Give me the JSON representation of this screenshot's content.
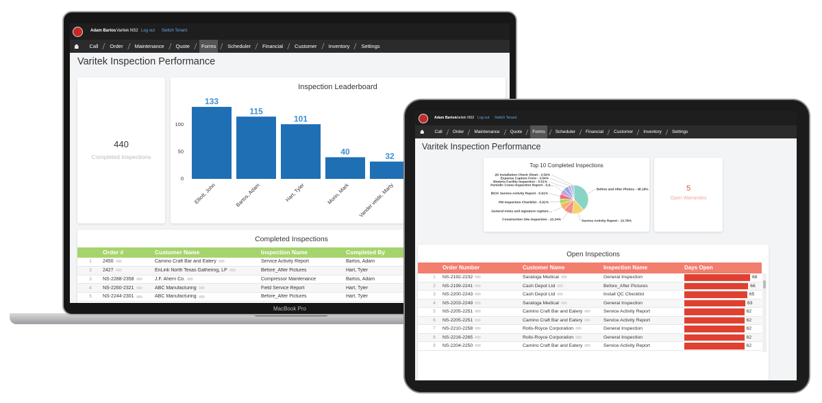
{
  "laptop": {
    "header": {
      "user": "Adam Bartos",
      "tenant": "Varitek NS2",
      "links": [
        "Log out",
        "Switch Tenant"
      ]
    },
    "nav": [
      "Call",
      "Order",
      "Maintenance",
      "Quote",
      "Forms",
      "Scheduler",
      "Financial",
      "Customer",
      "Inventory",
      "Settings"
    ],
    "active_nav": 4,
    "title": "Varitek Inspection Performance",
    "kpi": {
      "value": 440,
      "label": "Completed Inspections"
    },
    "chart": {
      "type": "bar",
      "title": "Inspection Leaderboard",
      "categories": [
        "Elliott, John",
        "Bartos, Adam",
        "Hart, Tyler",
        "Morin, Mark",
        "Vander velde, Marty"
      ],
      "values": [
        133,
        115,
        101,
        40,
        32
      ],
      "color": "#1f6fb5",
      "label_color": "#3d8fd1",
      "ylim": [
        0,
        150
      ],
      "yticks": [
        0,
        50,
        100
      ]
    },
    "table": {
      "title": "Completed Inspections",
      "columns": [
        "Order #",
        "Customer Name",
        "Inspection Name",
        "Completed By"
      ],
      "header_color": "#a6d46c",
      "rows": [
        [
          1,
          "2450",
          "Camino Craft Bar and Eatery",
          "Service Activity Report",
          "Bartos, Adam"
        ],
        [
          2,
          "2427",
          "EnLink North Texas Gathering, LP",
          "Before_After Pictures",
          "Hart, Tyler"
        ],
        [
          3,
          "NS-2288-2358",
          "J.F. Ahern Co.",
          "Compressor Maintenance",
          "Bartos, Adam"
        ],
        [
          4,
          "NS-2260-2321",
          "ABC Manufacturing",
          "Field Service Report",
          "Hart, Tyler"
        ],
        [
          5,
          "NS-2244-2301",
          "ABC Manufacturing",
          "Before_After Pictures",
          "Hart, Tyler"
        ]
      ]
    },
    "brand": "MacBook Pro"
  },
  "tablet": {
    "header": {
      "user": "Adam Bartos",
      "tenant": "Varitek NS2",
      "links": [
        "Log out",
        "Switch Tenant"
      ]
    },
    "nav": [
      "Call",
      "Order",
      "Maintenance",
      "Quote",
      "Forms",
      "Scheduler",
      "Financial",
      "Customer",
      "Inventory",
      "Settings"
    ],
    "active_nav": 4,
    "title": "Varitek Inspection Performance",
    "chart": {
      "type": "pie",
      "title": "Top 10 Completed Inspections",
      "categories": [
        "Before and After Photos - 38.19%",
        "Service Activity Report - 13.78%",
        "Construction Site Inspection - 10.24%",
        "General notes and signature capture ...",
        "PM Inspection Checklist - 5.91%",
        "BICK Service Activity Report - 5.91%",
        "Periodic Crane Inspection Report - 5.9...",
        "Bioteria Facility Inspection - 5.51%",
        "Expense Capture Form - 3.54%",
        "2D Installation Check Sheet - 3.54%"
      ],
      "values": [
        38.19,
        13.78,
        10.24,
        7.48,
        5.91,
        5.91,
        5.91,
        5.51,
        3.54,
        3.54
      ],
      "colors": [
        "#8ad4c6",
        "#f3d36b",
        "#f28e8e",
        "#f6b26b",
        "#b5d66b",
        "#ee6e73",
        "#c79ee0",
        "#7fb0e8",
        "#f59fc0",
        "#9ad0f5"
      ]
    },
    "kpi": {
      "value": 5,
      "label": "Open Warranties"
    },
    "table": {
      "title": "Open Inspections",
      "columns": [
        "Order Number",
        "Customer Name",
        "Inspection Name",
        "Days Open"
      ],
      "header_color": "#f27e6e",
      "bar_color": "#e0402f",
      "rows": [
        [
          1,
          "NS-2192-2232",
          "Saratoga Medical",
          "General Inspection",
          68
        ],
        [
          2,
          "NS-2199-2241",
          "Cash Depot Ltd",
          "Before_After Pictures",
          66
        ],
        [
          3,
          "NS-2200-2243",
          "Cash Depot Ltd",
          "Install QC Checklist",
          65
        ],
        [
          4,
          "NS-2203-2249",
          "Saratoga Medical",
          "General Inspection",
          63
        ],
        [
          5,
          "NS-2205-2251",
          "Camino Craft Bar and Eatery",
          "Service Activity Report",
          62
        ],
        [
          6,
          "NS-2205-2251",
          "Camino Craft Bar and Eatery",
          "Service Activity Report",
          62
        ],
        [
          7,
          "NS-2210-2258",
          "Rolls-Royce Corporation",
          "General Inspection",
          62
        ],
        [
          8,
          "NS-2216-2265",
          "Rolls-Royce Corporation",
          "General Inspection",
          62
        ],
        [
          9,
          "NS-2204-2250",
          "Camino Craft Bar and Eatery",
          "Service Activity Report",
          62
        ]
      ]
    }
  }
}
